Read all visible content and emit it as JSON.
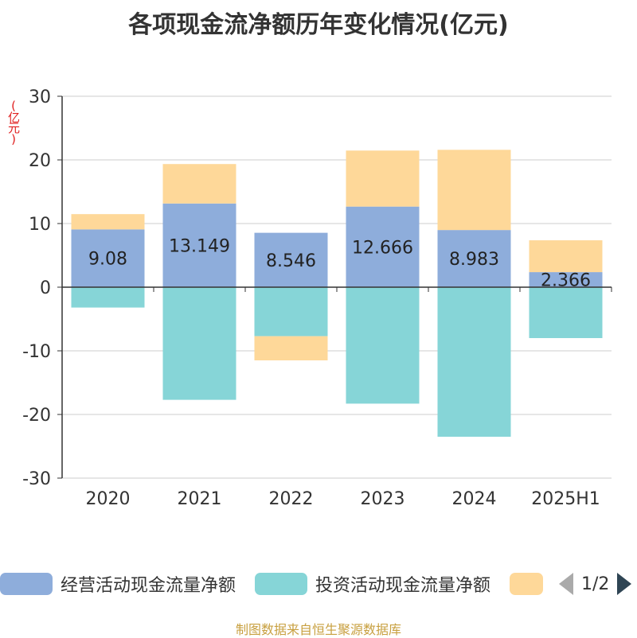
{
  "title": "各项现金流净额历年变化情况(亿元)",
  "unit_label": "(亿元)",
  "source": "制图数据来自恒生聚源数据库",
  "legend": {
    "items": [
      {
        "label": "经营活动现金流量净额",
        "color": "#8eaddb"
      },
      {
        "label": "投资活动现金流量净额",
        "color": "#86d5d7"
      },
      {
        "label": "",
        "color": "#fed899"
      }
    ],
    "page_text": "1/2"
  },
  "chart_data": {
    "type": "bar",
    "stacked": true,
    "categories": [
      "2020",
      "2021",
      "2022",
      "2023",
      "2024",
      "2025H1"
    ],
    "ylim": [
      -30,
      30
    ],
    "yticks": [
      30,
      20,
      10,
      0,
      -10,
      -20,
      -30
    ],
    "grid": true,
    "legend_position": "bottom",
    "series": [
      {
        "name": "经营活动现金流量净额",
        "color": "#8eaddb",
        "show_labels": true,
        "values": [
          9.08,
          13.149,
          8.546,
          12.666,
          8.983,
          2.366
        ]
      },
      {
        "name": "投资活动现金流量净额",
        "color": "#86d5d7",
        "show_labels": false,
        "values": [
          -3.2,
          -17.7,
          -7.7,
          -18.3,
          -23.5,
          -8.0
        ]
      },
      {
        "color": "#fed899",
        "show_labels": false,
        "values": [
          2.4,
          6.2,
          -3.8,
          8.8,
          12.6,
          5.0
        ]
      }
    ]
  }
}
